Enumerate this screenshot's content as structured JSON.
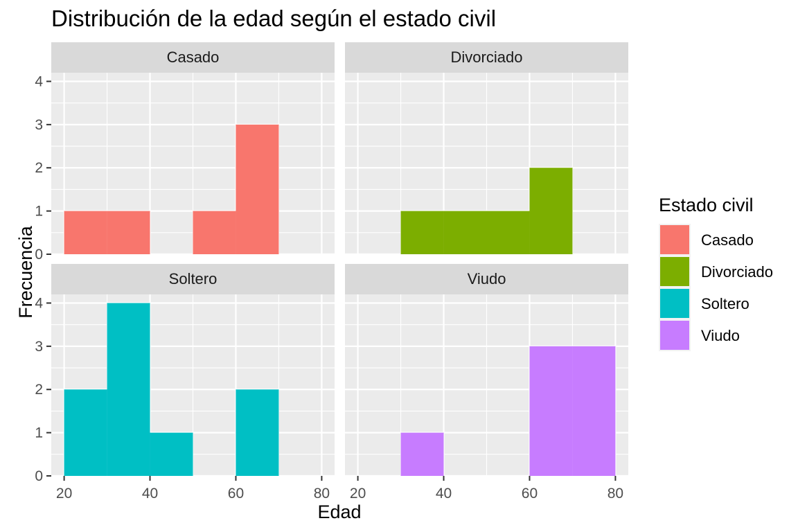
{
  "chart_data": {
    "type": "bar",
    "title": "Distribución de la edad según el estado civil",
    "xlabel": "Edad",
    "ylabel": "Frecuencia",
    "xlim": [
      17,
      83
    ],
    "ylim": [
      0,
      4.2
    ],
    "x_ticks": [
      20,
      40,
      60,
      80
    ],
    "y_ticks": [
      0,
      1,
      2,
      3,
      4
    ],
    "x_tick_labels": [
      "20",
      "40",
      "60",
      "80"
    ],
    "y_tick_labels": [
      "0",
      "1",
      "2",
      "3",
      "4"
    ],
    "bin_width": 10,
    "bins": [
      [
        20,
        30
      ],
      [
        30,
        40
      ],
      [
        40,
        50
      ],
      [
        50,
        60
      ],
      [
        60,
        70
      ],
      [
        70,
        80
      ]
    ],
    "grid": true,
    "layout": "facet 2x2",
    "legend": {
      "title": "Estado civil",
      "position": "right",
      "entries": [
        "Casado",
        "Divorciado",
        "Soltero",
        "Viudo"
      ]
    },
    "series": [
      {
        "name": "Casado",
        "color": "#F8766D",
        "counts": [
          1,
          1,
          0,
          1,
          3,
          0
        ]
      },
      {
        "name": "Divorciado",
        "color": "#7CAE00",
        "counts": [
          0,
          1,
          1,
          1,
          2,
          0
        ]
      },
      {
        "name": "Soltero",
        "color": "#00BFC4",
        "counts": [
          2,
          4,
          1,
          0,
          2,
          0
        ]
      },
      {
        "name": "Viudo",
        "color": "#C77CFF",
        "counts": [
          0,
          1,
          0,
          0,
          3,
          3
        ]
      }
    ],
    "panel_background": "#EBEBEB",
    "strip_background": "#D9D9D9",
    "gridline_color": "#FFFFFF"
  }
}
